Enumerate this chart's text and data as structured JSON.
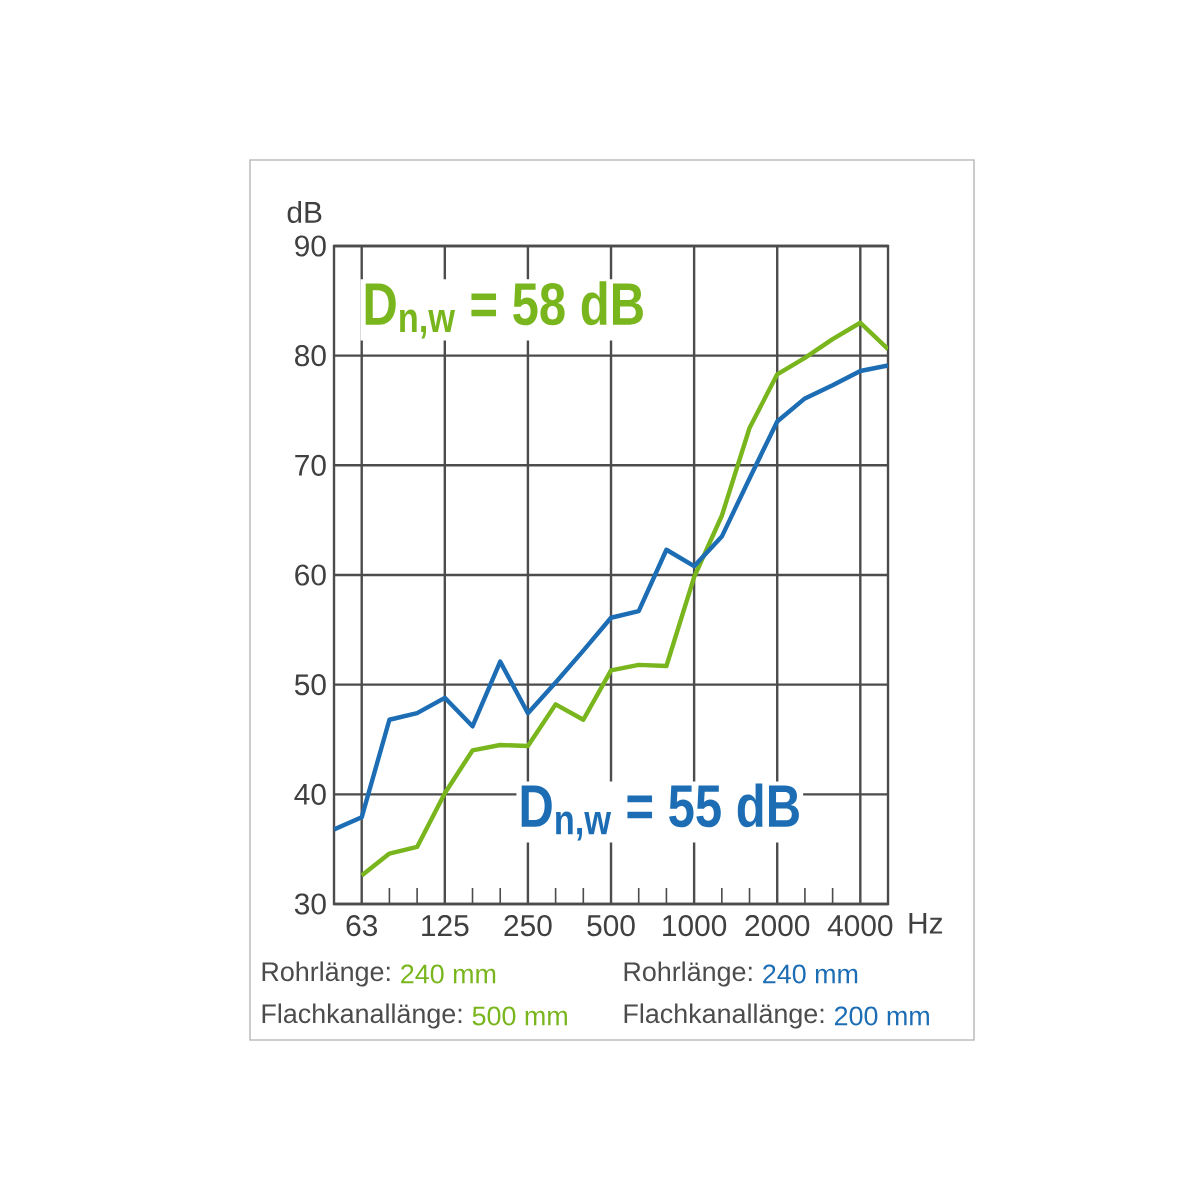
{
  "chart_data": {
    "type": "line",
    "categories": [
      null,
      "63",
      null,
      null,
      "125",
      null,
      null,
      "250",
      null,
      null,
      "500",
      null,
      null,
      "1000",
      null,
      null,
      "2000",
      null,
      null,
      "4000",
      null
    ],
    "series": [
      {
        "color": "#79b51c",
        "values": [
          null,
          32.6,
          34.6,
          35.2,
          40.1,
          44.0,
          44.5,
          44.4,
          48.2,
          46.8,
          51.3,
          51.8,
          51.7,
          59.8,
          65.4,
          73.4,
          78.3,
          79.8,
          81.5,
          83.0,
          80.6
        ]
      },
      {
        "color": "#1c6db4",
        "values": [
          36.8,
          37.9,
          46.8,
          47.4,
          48.8,
          46.2,
          52.1,
          47.4,
          50.2,
          53.1,
          56.1,
          56.7,
          62.3,
          60.8,
          63.5,
          68.8,
          74.0,
          76.1,
          77.3,
          78.6,
          79.1
        ]
      }
    ],
    "xlabel": "Hz",
    "ylabel": "dB",
    "ylim": [
      30,
      90
    ],
    "yticks": [
      30,
      40,
      50,
      60,
      70,
      80,
      90
    ],
    "grid": true,
    "annotations": [
      "D$_{n,w}$ = 58 dB",
      "D$_{n,w}$ = 55 dB",
      "Rohrlänge:",
      "240 mm",
      "Flachkanallänge:",
      "500 mm",
      "Rohrlänge:",
      "240 mm",
      "Flachkanallänge:",
      "200 mm"
    ]
  }
}
